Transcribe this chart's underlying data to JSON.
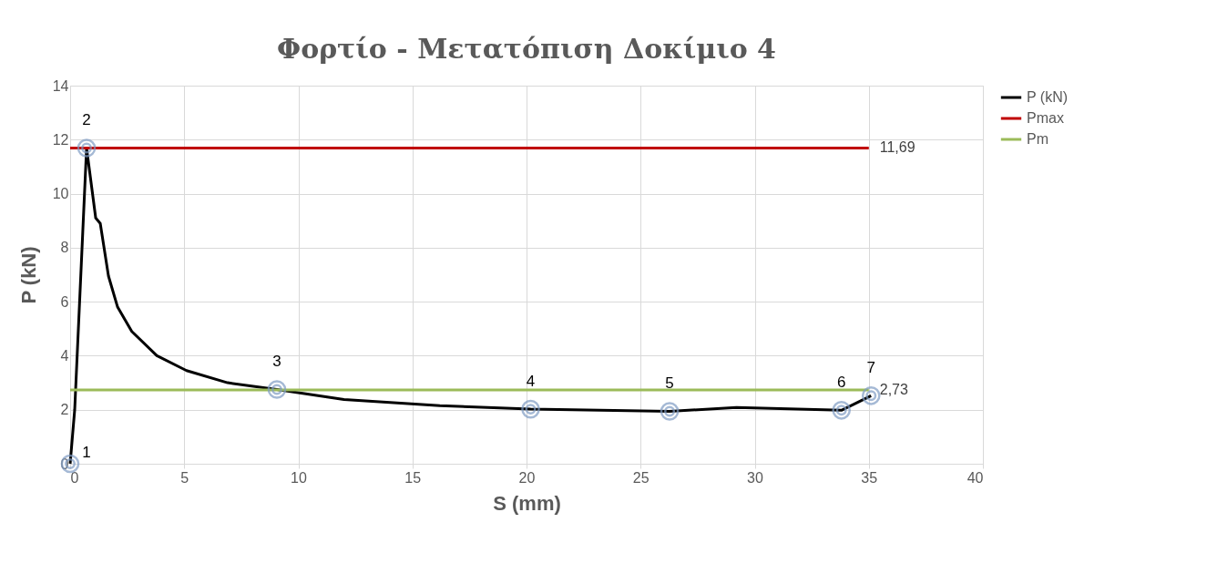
{
  "chart_data": {
    "type": "line",
    "title": "Φορτίο - Μετατόπιση Δοκίμιο 4",
    "xlabel": "S (mm)",
    "ylabel": "P (kN)",
    "xlim": [
      0,
      40
    ],
    "xticks": [
      0,
      5,
      10,
      15,
      20,
      25,
      30,
      35,
      40
    ],
    "ylim": [
      0,
      14
    ],
    "yticks": [
      0,
      2,
      4,
      6,
      8,
      10,
      12,
      14
    ],
    "grid": true,
    "legend": "right",
    "marker": "none",
    "line_style": "solid",
    "series": [
      {
        "name": "P (kN)",
        "color": "#000000",
        "x": [
          0,
          0.2,
          0.72,
          1.12,
          1.32,
          1.68,
          2.08,
          2.7,
          3.8,
          5.1,
          6.9,
          9.06,
          12,
          16.2,
          20.18,
          26.27,
          29.2,
          33.8,
          35.1
        ],
        "values": [
          0,
          2,
          11.69,
          9.1,
          8.9,
          6.95,
          5.8,
          4.9,
          4.0,
          3.45,
          3.0,
          2.75,
          2.38,
          2.15,
          2.02,
          1.94,
          2.08,
          1.98,
          2.52
        ]
      },
      {
        "name": "Pmax",
        "color": "#c00000",
        "x": [
          0,
          35
        ],
        "values": [
          11.69,
          11.69
        ],
        "value_labels": [
          null,
          "11,69"
        ]
      },
      {
        "name": "Pm",
        "color": "#9bbb59",
        "x": [
          0,
          35
        ],
        "values": [
          2.73,
          2.73
        ],
        "value_labels": [
          null,
          "2,73"
        ]
      }
    ],
    "annotations": [
      {
        "text": "1",
        "x": 0,
        "y": 0
      },
      {
        "text": "2",
        "x": 0.72,
        "y": 11.69
      },
      {
        "text": "3",
        "x": 9.06,
        "y": 2.75
      },
      {
        "text": "4",
        "x": 20.18,
        "y": 2.02
      },
      {
        "text": "5",
        "x": 26.27,
        "y": 1.94
      },
      {
        "text": "6",
        "x": 33.8,
        "y": 1.98
      },
      {
        "text": "7",
        "x": 35.1,
        "y": 2.52
      }
    ]
  }
}
